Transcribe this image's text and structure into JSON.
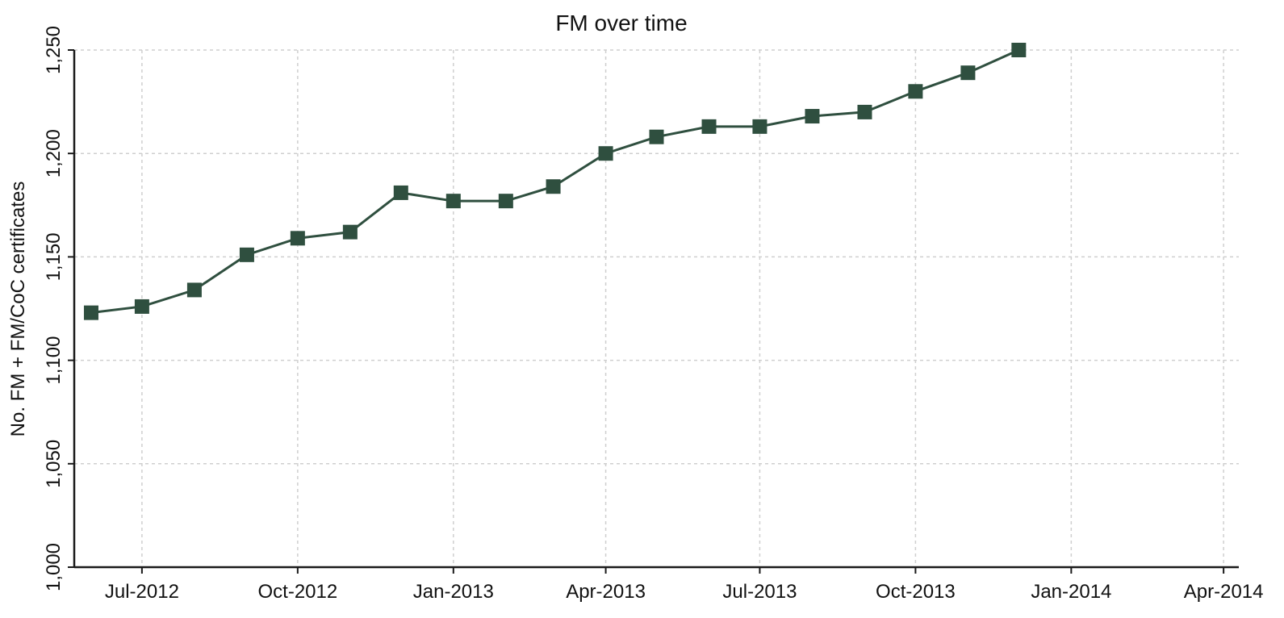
{
  "chart_data": {
    "type": "line",
    "title": "FM over time",
    "xlabel": "",
    "ylabel": "No. FM + FM/CoC certificates",
    "x_tick_labels": [
      "Jul-2012",
      "Oct-2012",
      "Jan-2013",
      "Apr-2013",
      "Jul-2013",
      "Oct-2013",
      "Jan-2014",
      "Apr-2014"
    ],
    "y_tick_labels": [
      "1,000",
      "1,050",
      "1,100",
      "1,150",
      "1,200",
      "1,250"
    ],
    "y_ticks": [
      1000,
      1050,
      1100,
      1150,
      1200,
      1250
    ],
    "ylim": [
      1000,
      1250
    ],
    "xlim": [
      "2012-05-22",
      "2014-04-10"
    ],
    "grid": true,
    "marker": "square",
    "series": [
      {
        "color": "#2f4f3f",
        "x": [
          "2012-06-01",
          "2012-07-01",
          "2012-08-01",
          "2012-09-01",
          "2012-10-01",
          "2012-11-01",
          "2012-12-01",
          "2013-01-01",
          "2013-02-01",
          "2013-03-01",
          "2013-04-01",
          "2013-05-01",
          "2013-06-01",
          "2013-07-01",
          "2013-08-01",
          "2013-09-01",
          "2013-10-01",
          "2013-11-01",
          "2013-12-01"
        ],
        "values": [
          1123,
          1126,
          1134,
          1151,
          1159,
          1162,
          1181,
          1177,
          1177,
          1184,
          1200,
          1208,
          1213,
          1213,
          1218,
          1220,
          1230,
          1239,
          1250
        ]
      }
    ]
  }
}
